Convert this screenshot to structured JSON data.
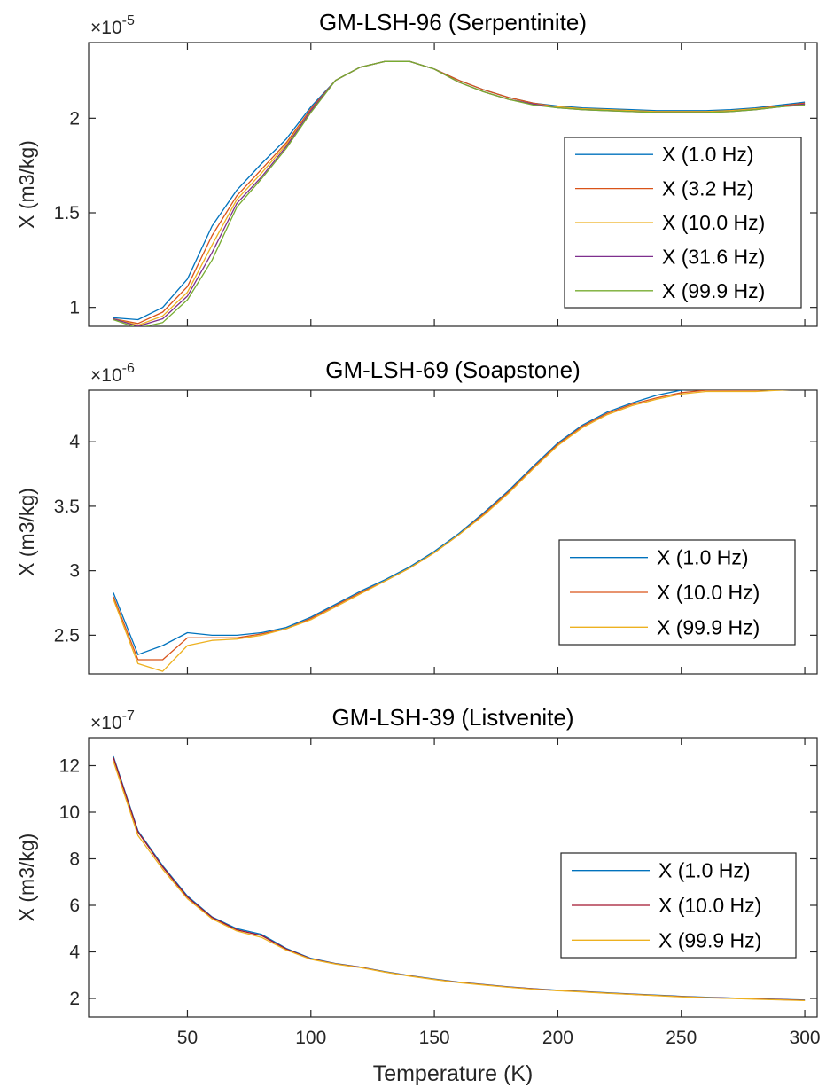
{
  "chart_data": [
    {
      "type": "line",
      "title": "GM-LSH-96 (Serpentinite)",
      "ylabel": "X (m3/kg)",
      "xlabel": "",
      "exponent": "-5",
      "xlim": [
        10,
        305
      ],
      "ylim": [
        0.9,
        2.4
      ],
      "yticks": [
        1,
        1.5,
        2
      ],
      "ytick_labels": [
        "1",
        "1.5",
        "2"
      ],
      "xticks": [
        50,
        100,
        150,
        200,
        250,
        300
      ],
      "xtick_labels": [],
      "legend_location": "right",
      "series": [
        {
          "name": "X (1.0 Hz)",
          "color": "#0072BD",
          "x": [
            20,
            30,
            40,
            50,
            60,
            70,
            80,
            90,
            100,
            110,
            120,
            130,
            140,
            150,
            160,
            170,
            180,
            190,
            200,
            210,
            220,
            230,
            240,
            250,
            260,
            270,
            280,
            290,
            300
          ],
          "y": [
            0.945,
            0.935,
            1.0,
            1.15,
            1.43,
            1.62,
            1.76,
            1.89,
            2.06,
            2.2,
            2.27,
            2.3,
            2.3,
            2.26,
            2.2,
            2.15,
            2.11,
            2.08,
            2.065,
            2.055,
            2.05,
            2.045,
            2.04,
            2.04,
            2.04,
            2.045,
            2.055,
            2.07,
            2.085
          ]
        },
        {
          "name": "X (3.2 Hz)",
          "color": "#D95319",
          "x": [
            20,
            30,
            40,
            50,
            60,
            70,
            80,
            90,
            100,
            110,
            120,
            130,
            140,
            150,
            160,
            170,
            180,
            190,
            200,
            210,
            220,
            230,
            240,
            250,
            260,
            270,
            280,
            290,
            300
          ],
          "y": [
            0.94,
            0.915,
            0.975,
            1.11,
            1.38,
            1.59,
            1.73,
            1.87,
            2.05,
            2.2,
            2.27,
            2.3,
            2.3,
            2.26,
            2.2,
            2.15,
            2.11,
            2.08,
            2.06,
            2.05,
            2.045,
            2.04,
            2.035,
            2.035,
            2.035,
            2.04,
            2.05,
            2.065,
            2.08
          ]
        },
        {
          "name": "X (10.0 Hz)",
          "color": "#EDB120",
          "x": [
            20,
            30,
            40,
            50,
            60,
            70,
            80,
            90,
            100,
            110,
            120,
            130,
            140,
            150,
            160,
            170,
            180,
            190,
            200,
            210,
            220,
            230,
            240,
            250,
            260,
            270,
            280,
            290,
            300
          ],
          "y": [
            0.94,
            0.905,
            0.955,
            1.08,
            1.33,
            1.57,
            1.71,
            1.86,
            2.04,
            2.2,
            2.27,
            2.3,
            2.3,
            2.26,
            2.19,
            2.14,
            2.1,
            2.075,
            2.06,
            2.05,
            2.045,
            2.04,
            2.035,
            2.035,
            2.035,
            2.04,
            2.05,
            2.06,
            2.075
          ]
        },
        {
          "name": "X (31.6 Hz)",
          "color": "#7E2F8E",
          "x": [
            20,
            30,
            40,
            50,
            60,
            70,
            80,
            90,
            100,
            110,
            120,
            130,
            140,
            150,
            160,
            170,
            180,
            190,
            200,
            210,
            220,
            230,
            240,
            250,
            260,
            270,
            280,
            290,
            300
          ],
          "y": [
            0.94,
            0.9,
            0.94,
            1.06,
            1.29,
            1.55,
            1.69,
            1.85,
            2.04,
            2.2,
            2.27,
            2.3,
            2.3,
            2.26,
            2.19,
            2.14,
            2.1,
            2.075,
            2.055,
            2.045,
            2.04,
            2.035,
            2.03,
            2.03,
            2.03,
            2.035,
            2.045,
            2.06,
            2.075
          ]
        },
        {
          "name": "X (99.9 Hz)",
          "color": "#77AC30",
          "x": [
            20,
            30,
            40,
            50,
            60,
            70,
            80,
            90,
            100,
            110,
            120,
            130,
            140,
            150,
            160,
            170,
            180,
            190,
            200,
            210,
            220,
            230,
            240,
            250,
            260,
            270,
            280,
            290,
            300
          ],
          "y": [
            0.935,
            0.89,
            0.92,
            1.04,
            1.25,
            1.53,
            1.68,
            1.84,
            2.03,
            2.2,
            2.27,
            2.3,
            2.3,
            2.26,
            2.19,
            2.14,
            2.1,
            2.07,
            2.055,
            2.045,
            2.04,
            2.035,
            2.03,
            2.03,
            2.03,
            2.035,
            2.045,
            2.06,
            2.07
          ]
        }
      ]
    },
    {
      "type": "line",
      "title": "GM-LSH-69 (Soapstone)",
      "ylabel": "X (m3/kg)",
      "xlabel": "",
      "exponent": "-6",
      "xlim": [
        10,
        305
      ],
      "ylim": [
        2.2,
        4.4
      ],
      "yticks": [
        2.5,
        3,
        3.5,
        4
      ],
      "ytick_labels": [
        "2.5",
        "3",
        "3.5",
        "4"
      ],
      "xticks": [
        50,
        100,
        150,
        200,
        250,
        300
      ],
      "xtick_labels": [],
      "legend_location": "right",
      "series": [
        {
          "name": "X (1.0 Hz)",
          "color": "#0072BD",
          "x": [
            20,
            30,
            40,
            50,
            60,
            70,
            80,
            90,
            100,
            110,
            120,
            130,
            140,
            150,
            160,
            170,
            180,
            190,
            200,
            210,
            220,
            230,
            240,
            250,
            260,
            270,
            280,
            290,
            300
          ],
          "y": [
            2.83,
            2.35,
            2.42,
            2.52,
            2.5,
            2.5,
            2.52,
            2.56,
            2.64,
            2.74,
            2.84,
            2.93,
            3.03,
            3.15,
            3.29,
            3.45,
            3.62,
            3.81,
            3.99,
            4.13,
            4.23,
            4.3,
            4.36,
            4.4,
            4.42,
            4.43,
            4.43,
            4.43,
            4.44
          ]
        },
        {
          "name": "X (10.0 Hz)",
          "color": "#D95319",
          "x": [
            20,
            30,
            40,
            50,
            60,
            70,
            80,
            90,
            100,
            110,
            120,
            130,
            140,
            150,
            160,
            170,
            180,
            190,
            200,
            210,
            220,
            230,
            240,
            250,
            260,
            270,
            280,
            290,
            300
          ],
          "y": [
            2.8,
            2.31,
            2.31,
            2.48,
            2.48,
            2.48,
            2.51,
            2.55,
            2.63,
            2.73,
            2.83,
            2.92,
            3.02,
            3.14,
            3.28,
            3.44,
            3.61,
            3.8,
            3.98,
            4.12,
            4.22,
            4.29,
            4.34,
            4.38,
            4.4,
            4.4,
            4.4,
            4.41,
            4.42
          ]
        },
        {
          "name": "X (99.9 Hz)",
          "color": "#EDB120",
          "x": [
            20,
            30,
            40,
            50,
            60,
            70,
            80,
            90,
            100,
            110,
            120,
            130,
            140,
            150,
            160,
            170,
            180,
            190,
            200,
            210,
            220,
            230,
            240,
            250,
            260,
            270,
            280,
            290,
            300
          ],
          "y": [
            2.78,
            2.28,
            2.22,
            2.42,
            2.46,
            2.47,
            2.5,
            2.55,
            2.62,
            2.72,
            2.82,
            2.92,
            3.02,
            3.14,
            3.28,
            3.43,
            3.6,
            3.79,
            3.97,
            4.11,
            4.21,
            4.28,
            4.33,
            4.37,
            4.39,
            4.39,
            4.39,
            4.4,
            4.41
          ]
        }
      ]
    },
    {
      "type": "line",
      "title": "GM-LSH-39 (Listvenite)",
      "ylabel": "X (m3/kg)",
      "xlabel": "Temperature (K)",
      "exponent": "-7",
      "xlim": [
        10,
        305
      ],
      "ylim": [
        1.2,
        13.2
      ],
      "yticks": [
        2,
        4,
        6,
        8,
        10,
        12
      ],
      "ytick_labels": [
        "2",
        "4",
        "6",
        "8",
        "10",
        "12"
      ],
      "xticks": [
        50,
        100,
        150,
        200,
        250,
        300
      ],
      "xtick_labels": [
        "50",
        "100",
        "150",
        "200",
        "250",
        "300"
      ],
      "legend_location": "right",
      "series": [
        {
          "name": "X (1.0 Hz)",
          "color": "#0072BD",
          "x": [
            20,
            30,
            40,
            50,
            60,
            70,
            80,
            90,
            100,
            110,
            120,
            130,
            140,
            150,
            160,
            170,
            180,
            190,
            200,
            210,
            220,
            230,
            240,
            250,
            260,
            270,
            280,
            290,
            300
          ],
          "y": [
            12.4,
            9.2,
            7.7,
            6.4,
            5.5,
            5.0,
            4.75,
            4.15,
            3.72,
            3.5,
            3.35,
            3.15,
            2.98,
            2.83,
            2.7,
            2.6,
            2.5,
            2.42,
            2.35,
            2.3,
            2.24,
            2.19,
            2.14,
            2.09,
            2.05,
            2.02,
            1.99,
            1.96,
            1.93
          ]
        },
        {
          "name": "X (10.0 Hz)",
          "color": "#A2142F",
          "x": [
            20,
            30,
            40,
            50,
            60,
            70,
            80,
            90,
            100,
            110,
            120,
            130,
            140,
            150,
            160,
            170,
            180,
            190,
            200,
            210,
            220,
            230,
            240,
            250,
            260,
            270,
            280,
            290,
            300
          ],
          "y": [
            12.35,
            9.15,
            7.65,
            6.35,
            5.48,
            4.95,
            4.7,
            4.12,
            3.7,
            3.49,
            3.34,
            3.14,
            2.97,
            2.82,
            2.69,
            2.59,
            2.49,
            2.41,
            2.34,
            2.29,
            2.23,
            2.18,
            2.13,
            2.08,
            2.04,
            2.01,
            1.98,
            1.95,
            1.92
          ]
        },
        {
          "name": "X (99.9 Hz)",
          "color": "#EDB120",
          "x": [
            20,
            30,
            40,
            50,
            60,
            70,
            80,
            90,
            100,
            110,
            120,
            130,
            140,
            150,
            160,
            170,
            180,
            190,
            200,
            210,
            220,
            230,
            240,
            250,
            260,
            270,
            280,
            290,
            300
          ],
          "y": [
            12.2,
            9.0,
            7.55,
            6.28,
            5.42,
            4.9,
            4.62,
            4.08,
            3.68,
            3.48,
            3.33,
            3.13,
            2.96,
            2.81,
            2.68,
            2.58,
            2.48,
            2.4,
            2.33,
            2.28,
            2.22,
            2.17,
            2.12,
            2.07,
            2.03,
            2.0,
            1.97,
            1.94,
            1.91
          ]
        }
      ]
    }
  ]
}
